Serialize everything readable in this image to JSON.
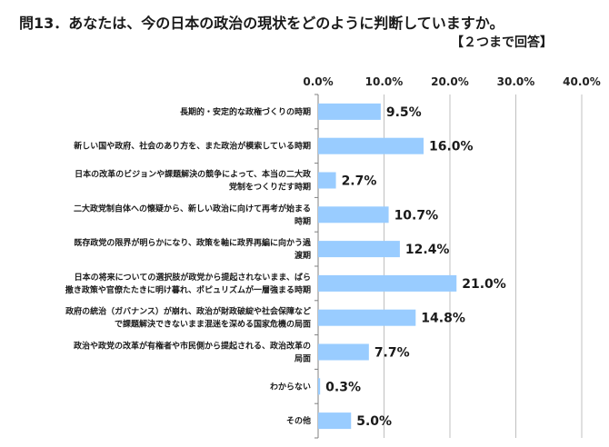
{
  "title": "問13．あなたは、今の日本の政治の現状をどのように判断していますか。",
  "subtitle": "【２つまで回答】",
  "chart_data": {
    "type": "bar",
    "orientation": "horizontal",
    "categories": [
      [
        "長期的・安定的な政権づくりの時期"
      ],
      [
        "新しい国や政府、社会のあり方を、また政治が模索している時期"
      ],
      [
        "日本の改革のビジョンや課題解決の競争によって、本当の二大政",
        "党制をつくりだす時期"
      ],
      [
        "二大政党制自体への懐疑から、新しい政治に向けて再考が始まる",
        "時期"
      ],
      [
        "既存政党の限界が明らかになり、政策を軸に政界再編に向かう過",
        "渡期"
      ],
      [
        "日本の将来についての選択肢が政党から提起されないまま、ばら",
        "撒き政策や官僚たたきに明け暮れ、ポピュリズムが一層強まる時期"
      ],
      [
        "政府の統治（ガバナンス）が崩れ、政治が財政破綻や社会保障など",
        "で課題解決できないまま混迷を深める国家危機の局面"
      ],
      [
        "政治や政党の改革が有権者や市民側から提起される、政治改革の",
        "局面"
      ],
      [
        "わからない"
      ],
      [
        "その他"
      ]
    ],
    "values": [
      9.5,
      16.0,
      2.7,
      10.7,
      12.4,
      21.0,
      14.8,
      7.7,
      0.3,
      5.0
    ],
    "value_labels": [
      "9.5%",
      "16.0%",
      "2.7%",
      "10.7%",
      "12.4%",
      "21.0%",
      "14.8%",
      "7.7%",
      "0.3%",
      "5.0%"
    ],
    "x_ticks": [
      0,
      10,
      20,
      30,
      40
    ],
    "x_tick_labels": [
      "0.0%",
      "10.0%",
      "20.0%",
      "30.0%",
      "40.0%"
    ],
    "xlim": [
      0,
      40
    ],
    "xaxis_position": "top",
    "grid": "vertical",
    "bar_color": "#99ccff",
    "grid_color": "#c0c0c0"
  }
}
